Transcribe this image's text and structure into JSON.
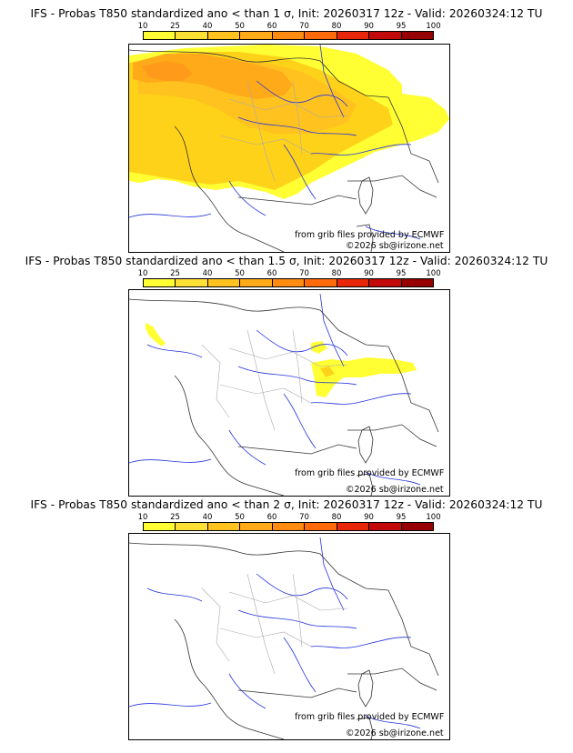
{
  "colorbar": {
    "ticks": [
      "10",
      "25",
      "40",
      "50",
      "60",
      "70",
      "80",
      "90",
      "95",
      "100"
    ],
    "colors": [
      "#ffff33",
      "#ffe135",
      "#ffc21f",
      "#ffaa19",
      "#ff8c10",
      "#ff6a0a",
      "#e8260a",
      "#c20a0a",
      "#960000",
      "#5a0000"
    ]
  },
  "panels": [
    {
      "title": "IFS - Probas T850  standardized ano < than 1 σ, Init: 20260317 12z - Valid: 20260324:12 TU",
      "fill_levels": "10-60",
      "source_credit": "from grib files provided by ECMWF",
      "copyright": "©2026 sb@irizone.net"
    },
    {
      "title": "IFS - Probas T850  standardized ano < than 1.5 σ, Init: 20260317 12z - Valid: 20260324:12 TU",
      "fill_levels": "10-25",
      "source_credit": "from grib files provided by ECMWF",
      "copyright": "©2026 sb@irizone.net"
    },
    {
      "title": "IFS - Probas T850  standardized ano < than 2 σ, Init: 20260317 12z - Valid: 20260324:12 TU",
      "fill_levels": "none",
      "source_credit": "from grib files provided by ECMWF",
      "copyright": "©2026 sb@irizone.net"
    }
  ]
}
